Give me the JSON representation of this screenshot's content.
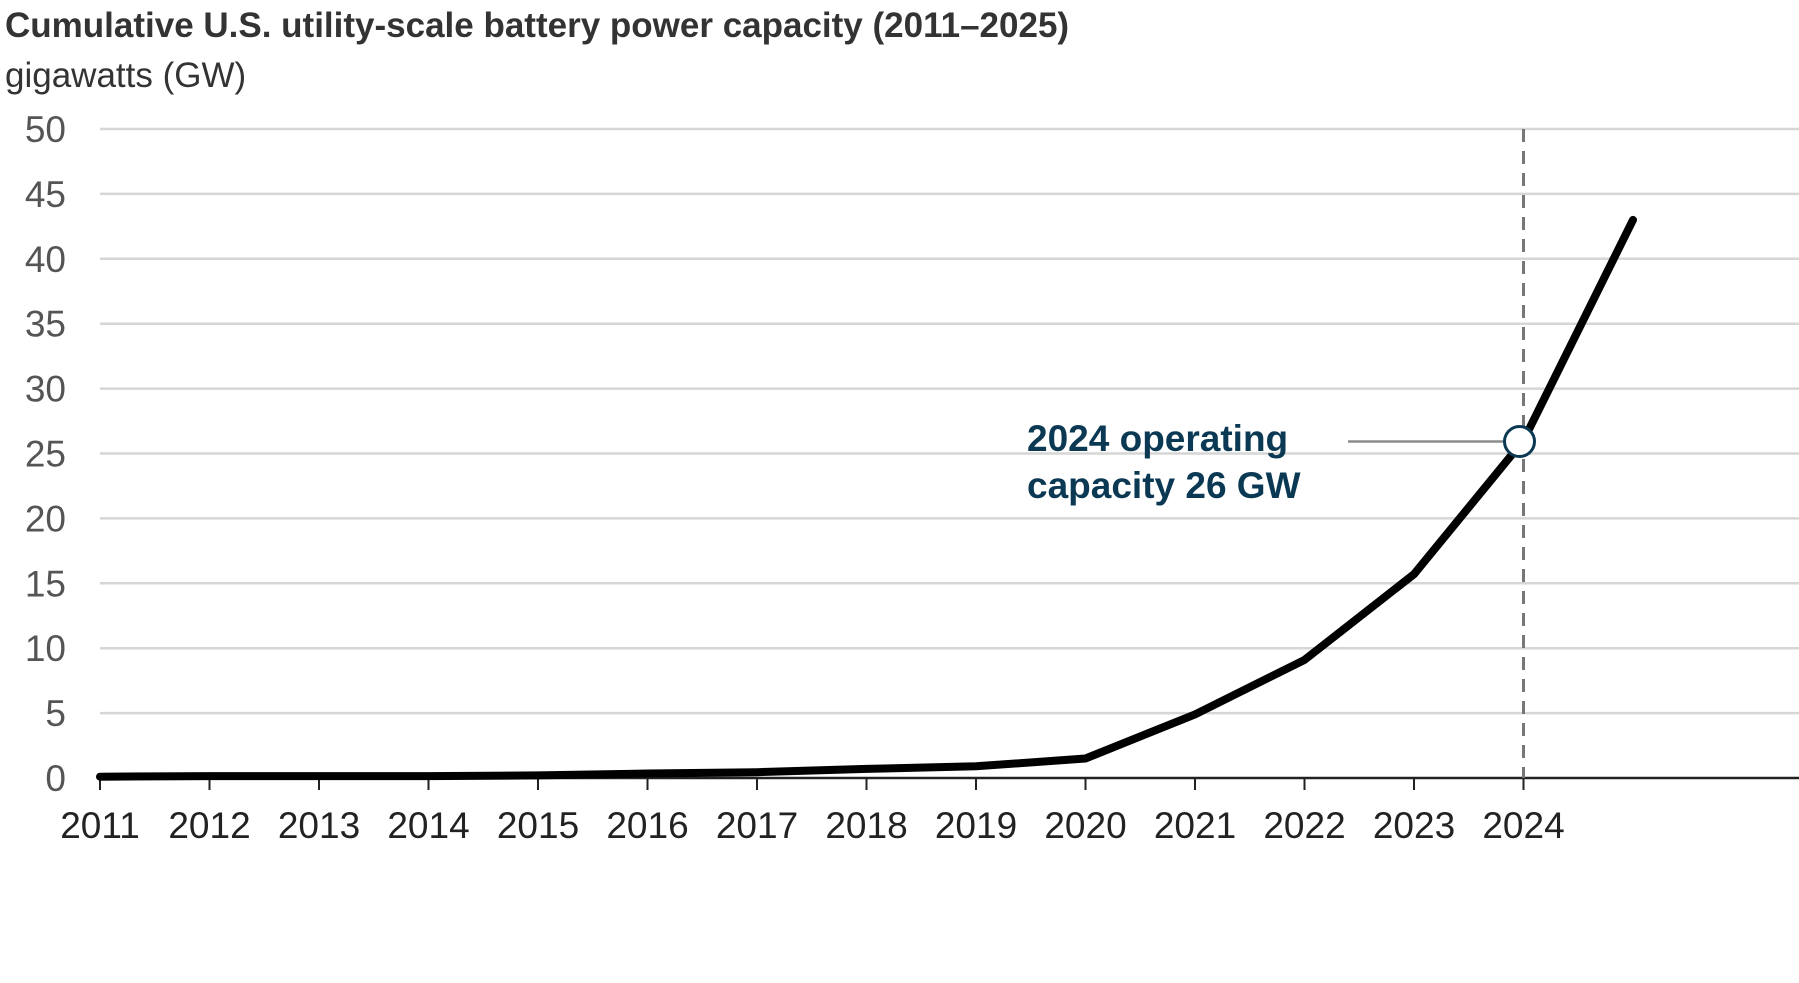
{
  "chart_data": {
    "type": "line",
    "title": "Cumulative U.S. utility-scale battery power capacity (2011–2025)",
    "subtitle": "gigawatts (GW)",
    "xlabel": "",
    "ylabel": "",
    "x": [
      2011,
      2012,
      2013,
      2014,
      2015,
      2016,
      2017,
      2018,
      2019,
      2020,
      2021,
      2022,
      2023,
      2024,
      2025
    ],
    "x_tick_labels": [
      "2011",
      "2012",
      "2013",
      "2014",
      "2015",
      "2016",
      "2017",
      "2018",
      "2019",
      "2020",
      "2021",
      "2022",
      "2023",
      "2024"
    ],
    "y_ticks": [
      0,
      5,
      10,
      15,
      20,
      25,
      30,
      35,
      40,
      45,
      50
    ],
    "ylim": [
      0,
      50
    ],
    "grid": true,
    "series": [
      {
        "name": "",
        "values": [
          0.1,
          0.15,
          0.15,
          0.15,
          0.2,
          0.35,
          0.45,
          0.7,
          0.9,
          1.5,
          4.9,
          9.1,
          15.7,
          26,
          43
        ],
        "color": "#000000"
      }
    ],
    "marker_line": {
      "x": 2024,
      "style": "dashed",
      "color": "#777777"
    },
    "annotation": {
      "x": 2024,
      "y": 26,
      "lines": [
        "2024 operating",
        "capacity 26 GW"
      ],
      "color": "#0b3954"
    }
  }
}
